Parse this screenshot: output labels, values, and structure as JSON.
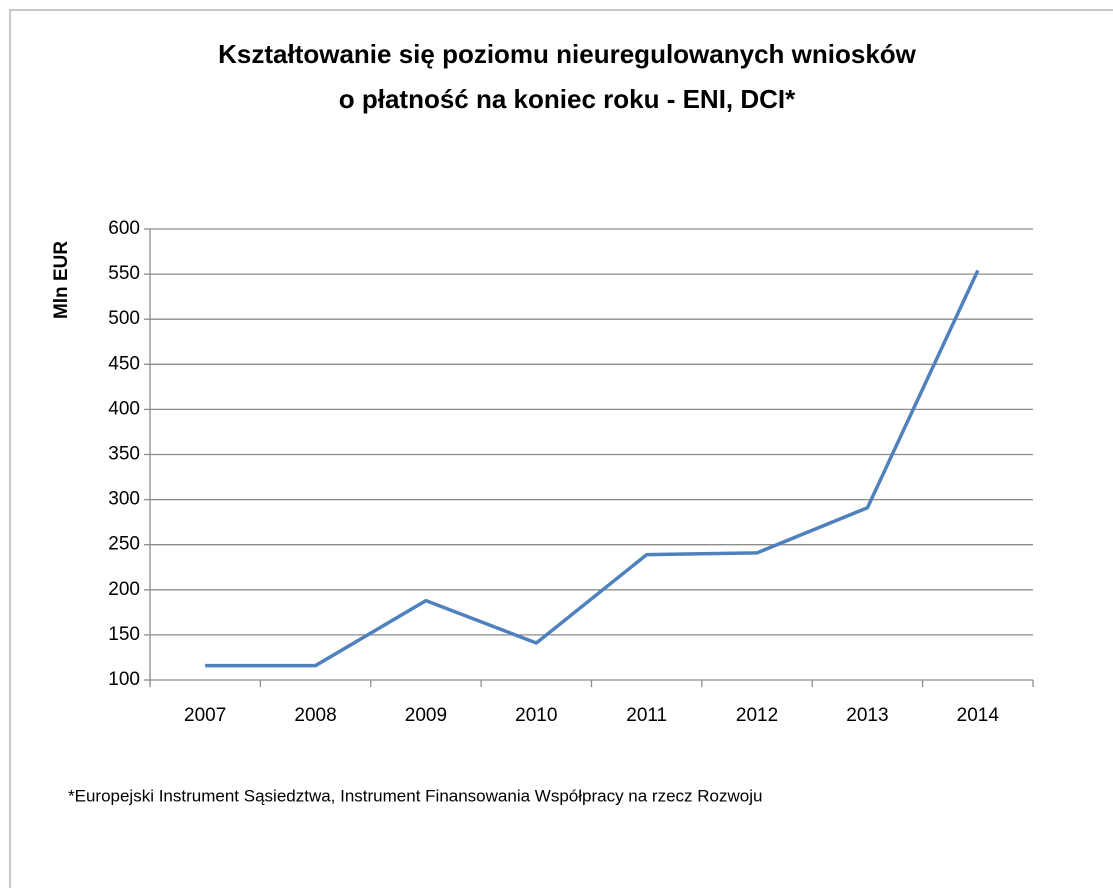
{
  "chart_data": {
    "type": "line",
    "title": [
      "Kształtowanie się poziomu nieuregulowanych wniosków",
      "o płatność na koniec roku -  ENI, DCI*"
    ],
    "y_label": "Mln EUR",
    "footnote": "*Europejski Instrument Sąsiedztwa, Instrument Finansowania Współpracy na rzecz Rozwoju",
    "categories": [
      "2007",
      "2008",
      "2009",
      "2010",
      "2011",
      "2012",
      "2013",
      "2014"
    ],
    "series": [
      {
        "name": "ENI, DCI",
        "color": "#4f81bd",
        "values": [
          116,
          116,
          188,
          141,
          239,
          241,
          291,
          554
        ]
      }
    ],
    "ylim": [
      100,
      600
    ],
    "yticks": [
      100,
      150,
      200,
      250,
      300,
      350,
      400,
      450,
      500,
      550,
      600
    ],
    "grid": true
  }
}
